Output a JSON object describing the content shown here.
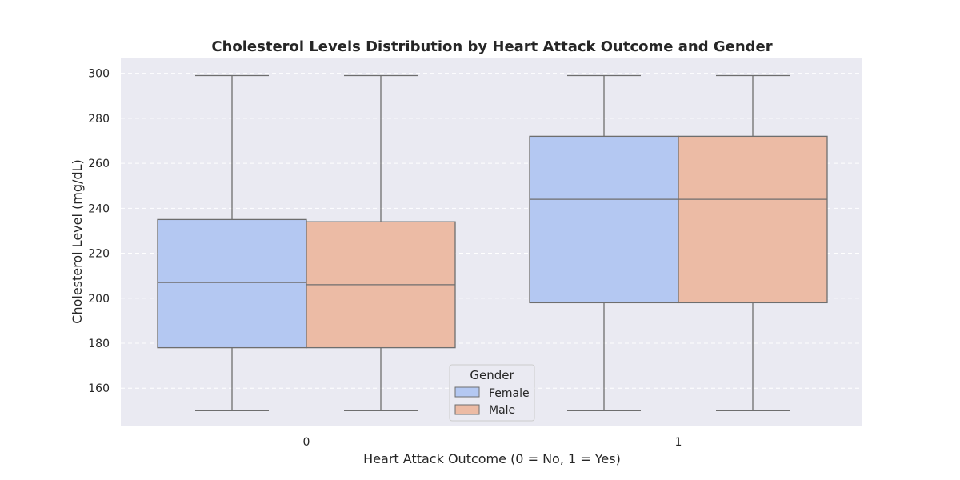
{
  "chart_data": {
    "type": "box",
    "title": "Cholesterol Levels Distribution by Heart Attack Outcome and Gender",
    "xlabel": "Heart Attack Outcome (0 = No, 1 = Yes)",
    "ylabel": "Cholesterol Level (mg/dL)",
    "categories": [
      "0",
      "1"
    ],
    "yticks": [
      160,
      180,
      200,
      220,
      240,
      260,
      280,
      300
    ],
    "ylim": [
      143,
      307
    ],
    "grid": true,
    "legend": {
      "title": "Gender",
      "placement": "bottom-center"
    },
    "series": [
      {
        "name": "Female",
        "color": "#b4c8f2",
        "boxes": [
          {
            "category": "0",
            "min": 150,
            "q1": 178,
            "median": 207,
            "q3": 235,
            "max": 299
          },
          {
            "category": "1",
            "min": 150,
            "q1": 198,
            "median": 244,
            "q3": 272,
            "max": 299
          }
        ]
      },
      {
        "name": "Male",
        "color": "#ecbba5",
        "boxes": [
          {
            "category": "0",
            "min": 150,
            "q1": 178,
            "median": 206,
            "q3": 234,
            "max": 299
          },
          {
            "category": "1",
            "min": 150,
            "q1": 198,
            "median": 244,
            "q3": 272,
            "max": 299
          }
        ]
      }
    ],
    "colors": {
      "plot_background": "#eaeaf2",
      "grid": "#ffffff",
      "box_edge": "#6e6e6e"
    }
  }
}
